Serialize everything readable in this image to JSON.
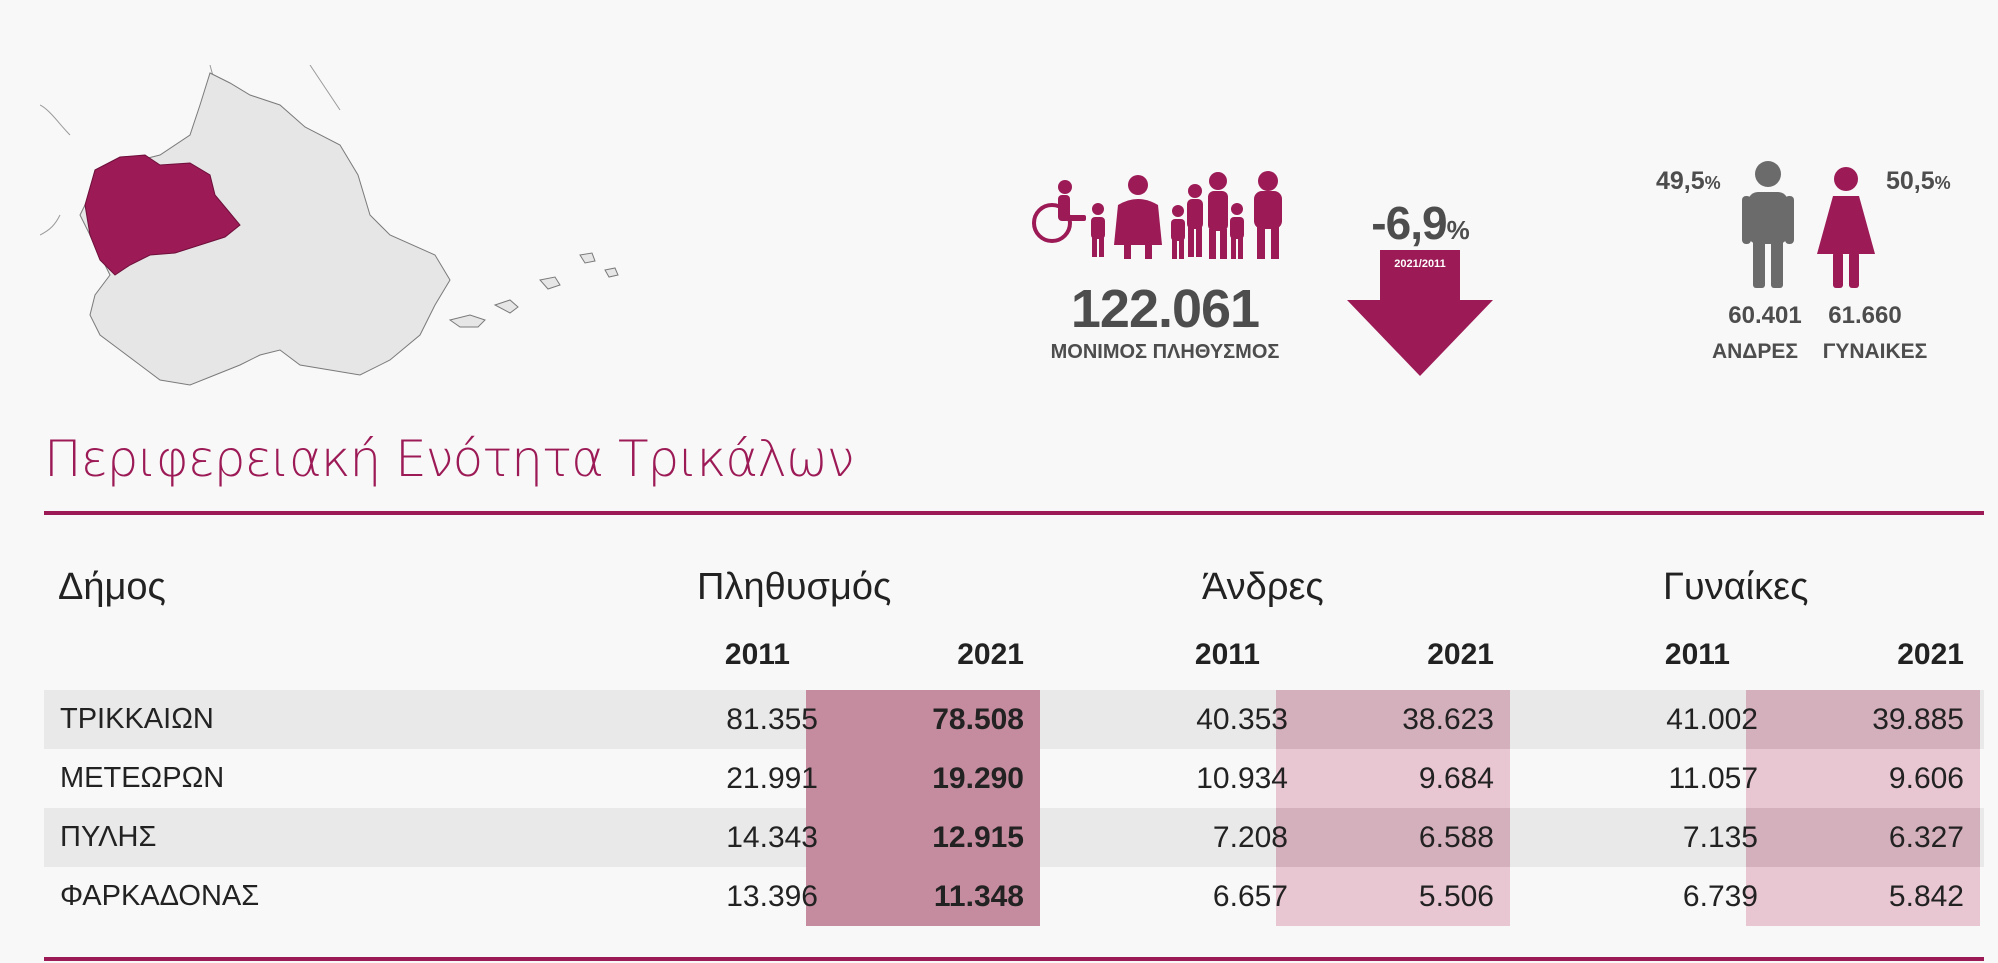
{
  "colors": {
    "accent": "#9c1a56",
    "text_gray": "#4d4d4d",
    "map_fill": "#e6e6e6",
    "highlight_pop": "#c58b9f",
    "highlight_light": "#e8c6d2"
  },
  "summary": {
    "population_value": "122.061",
    "population_label": "ΜΟΝΙΜΟΣ ΠΛΗΘΥΣΜΟΣ",
    "change_value": "-6,9",
    "change_unit": "%",
    "change_period": "2021/2011",
    "men_percent": "49,5",
    "women_percent": "50,5",
    "percent_unit": "%",
    "men_count": "60.401",
    "women_count": "61.660",
    "men_label": "ΑΝΔΡΕΣ",
    "women_label": "ΓΥΝΑΙΚΕΣ"
  },
  "title": "Περιφερειακή Ενότητα Τρικάλων",
  "table": {
    "headers": {
      "municipality": "Δήμος",
      "population": "Πληθυσμός",
      "men": "Άνδρες",
      "women": "Γυναίκες"
    },
    "years": [
      "2011",
      "2021",
      "2011",
      "2021",
      "2011",
      "2021"
    ],
    "rows": [
      {
        "name": "ΤΡΙΚΚΑΙΩΝ",
        "pop2011": "81.355",
        "pop2021": "78.508",
        "men2011": "40.353",
        "men2021": "38.623",
        "women2011": "41.002",
        "women2021": "39.885"
      },
      {
        "name": "ΜΕΤΕΩΡΩΝ",
        "pop2011": "21.991",
        "pop2021": "19.290",
        "men2011": "10.934",
        "men2021": "9.684",
        "women2011": "11.057",
        "women2021": "9.606"
      },
      {
        "name": "ΠΥΛΗΣ",
        "pop2011": "14.343",
        "pop2021": "12.915",
        "men2011": "7.208",
        "men2021": "6.588",
        "women2011": "7.135",
        "women2021": "6.327"
      },
      {
        "name": "ΦΑΡΚΑΔΟΝΑΣ",
        "pop2011": "13.396",
        "pop2021": "11.348",
        "men2011": "6.657",
        "men2021": "5.506",
        "women2011": "6.739",
        "women2021": "5.842"
      }
    ]
  }
}
